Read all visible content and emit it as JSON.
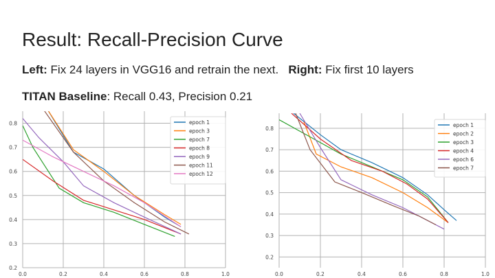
{
  "slide": {
    "title": "Result: Recall-Precision Curve",
    "line1": {
      "left_label": "Left:",
      "left_text": " Fix 24 layers in VGG16 and retrain the next.",
      "right_label": "Right:",
      "right_text": " Fix first 10 layers"
    },
    "line2": {
      "label": "TITAN Baseline",
      "text": ": Recall 0.43, Precision 0.21"
    }
  },
  "chart_data": [
    {
      "type": "line",
      "xlim": [
        0.0,
        1.0
      ],
      "ylim": [
        0.2,
        0.85
      ],
      "x_ticks": [
        "0.0",
        "0.2",
        "0.4",
        "0.6",
        "0.8",
        "1.0"
      ],
      "y_ticks": [
        "0.8",
        "0.7",
        "0.6",
        "0.5",
        "0.4",
        "0.3",
        "0.2"
      ],
      "grid": true,
      "legend": "top-right",
      "series": [
        {
          "name": "epoch 1",
          "color": "#1f77b4",
          "points": [
            [
              0.12,
              0.86
            ],
            [
              0.25,
              0.68
            ],
            [
              0.4,
              0.61
            ],
            [
              0.55,
              0.5
            ],
            [
              0.7,
              0.41
            ],
            [
              0.78,
              0.37
            ]
          ]
        },
        {
          "name": "epoch 3",
          "color": "#ff7f0e",
          "points": [
            [
              0.12,
              0.86
            ],
            [
              0.25,
              0.69
            ],
            [
              0.4,
              0.6
            ],
            [
              0.55,
              0.5
            ],
            [
              0.7,
              0.42
            ],
            [
              0.78,
              0.38
            ]
          ]
        },
        {
          "name": "epoch 7",
          "color": "#2ca02c",
          "points": [
            [
              0.0,
              0.79
            ],
            [
              0.05,
              0.7
            ],
            [
              0.18,
              0.53
            ],
            [
              0.3,
              0.47
            ],
            [
              0.45,
              0.43
            ],
            [
              0.6,
              0.38
            ],
            [
              0.75,
              0.33
            ]
          ]
        },
        {
          "name": "epoch 8",
          "color": "#d62728",
          "points": [
            [
              0.0,
              0.65
            ],
            [
              0.15,
              0.56
            ],
            [
              0.3,
              0.48
            ],
            [
              0.45,
              0.44
            ],
            [
              0.6,
              0.4
            ],
            [
              0.78,
              0.34
            ]
          ]
        },
        {
          "name": "epoch 9",
          "color": "#9467bd",
          "points": [
            [
              0.0,
              0.82
            ],
            [
              0.08,
              0.74
            ],
            [
              0.2,
              0.64
            ],
            [
              0.3,
              0.54
            ],
            [
              0.45,
              0.47
            ],
            [
              0.6,
              0.41
            ],
            [
              0.78,
              0.34
            ]
          ]
        },
        {
          "name": "epoch 11",
          "color": "#8c564b",
          "points": [
            [
              0.1,
              0.86
            ],
            [
              0.25,
              0.68
            ],
            [
              0.4,
              0.56
            ],
            [
              0.55,
              0.47
            ],
            [
              0.7,
              0.39
            ],
            [
              0.82,
              0.34
            ]
          ]
        },
        {
          "name": "epoch 12",
          "color": "#e377c2",
          "points": [
            [
              0.0,
              0.73
            ],
            [
              0.15,
              0.66
            ],
            [
              0.3,
              0.6
            ],
            [
              0.45,
              0.54
            ],
            [
              0.6,
              0.47
            ],
            [
              0.78,
              0.37
            ]
          ]
        }
      ]
    },
    {
      "type": "line",
      "xlim": [
        0.0,
        1.0
      ],
      "ylim": [
        0.15,
        0.87
      ],
      "x_ticks": [
        "0.0",
        "0.2",
        "0.4",
        "0.6",
        "0.8",
        "1.0"
      ],
      "y_ticks": [
        "0.8",
        "0.7",
        "0.6",
        "0.5",
        "0.4",
        "0.3",
        "0.2"
      ],
      "grid": true,
      "legend": "top-right",
      "series": [
        {
          "name": "epoch 1",
          "color": "#1f77b4",
          "points": [
            [
              0.07,
              0.87
            ],
            [
              0.2,
              0.77
            ],
            [
              0.3,
              0.7
            ],
            [
              0.45,
              0.64
            ],
            [
              0.6,
              0.57
            ],
            [
              0.72,
              0.49
            ],
            [
              0.8,
              0.42
            ],
            [
              0.86,
              0.37
            ]
          ]
        },
        {
          "name": "epoch 2",
          "color": "#ff7f0e",
          "points": [
            [
              0.12,
              0.83
            ],
            [
              0.18,
              0.68
            ],
            [
              0.3,
              0.62
            ],
            [
              0.45,
              0.57
            ],
            [
              0.6,
              0.5
            ],
            [
              0.72,
              0.43
            ],
            [
              0.82,
              0.36
            ]
          ]
        },
        {
          "name": "epoch 3",
          "color": "#2ca02c",
          "points": [
            [
              0.0,
              0.84
            ],
            [
              0.15,
              0.76
            ],
            [
              0.3,
              0.68
            ],
            [
              0.45,
              0.62
            ],
            [
              0.6,
              0.56
            ],
            [
              0.72,
              0.48
            ],
            [
              0.82,
              0.36
            ]
          ]
        },
        {
          "name": "epoch 4",
          "color": "#d62728",
          "points": [
            [
              0.06,
              0.87
            ],
            [
              0.2,
              0.75
            ],
            [
              0.35,
              0.65
            ],
            [
              0.5,
              0.6
            ],
            [
              0.62,
              0.54
            ],
            [
              0.72,
              0.47
            ],
            [
              0.82,
              0.36
            ]
          ]
        },
        {
          "name": "epoch 6",
          "color": "#9467bd",
          "points": [
            [
              0.1,
              0.87
            ],
            [
              0.2,
              0.71
            ],
            [
              0.3,
              0.56
            ],
            [
              0.45,
              0.49
            ],
            [
              0.6,
              0.43
            ],
            [
              0.72,
              0.37
            ],
            [
              0.8,
              0.33
            ]
          ]
        },
        {
          "name": "epoch 7",
          "color": "#8c564b",
          "points": [
            [
              0.08,
              0.87
            ],
            [
              0.15,
              0.7
            ],
            [
              0.27,
              0.55
            ],
            [
              0.4,
              0.5
            ],
            [
              0.55,
              0.44
            ],
            [
              0.68,
              0.39
            ],
            [
              0.76,
              0.35
            ]
          ]
        }
      ]
    }
  ]
}
